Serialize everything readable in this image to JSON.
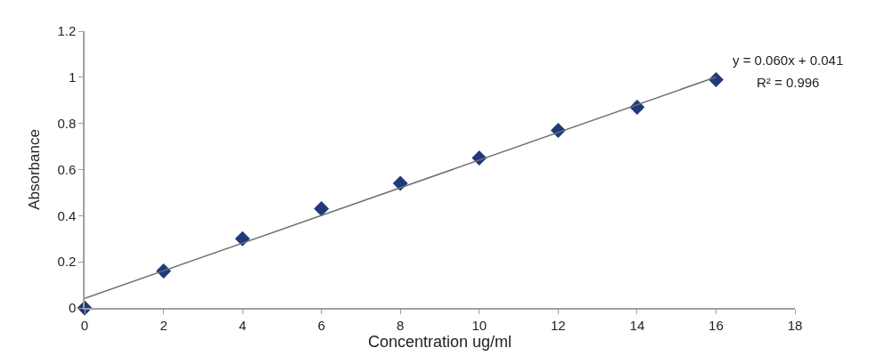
{
  "chart_data": {
    "type": "scatter",
    "xlabel": "Concentration ug/ml",
    "ylabel": "Absorbance",
    "x": [
      0,
      2,
      4,
      6,
      8,
      10,
      12,
      14,
      16
    ],
    "series": [
      {
        "color": "#1f3a7a",
        "values": [
          0,
          0.16,
          0.3,
          0.43,
          0.54,
          0.65,
          0.77,
          0.87,
          0.99
        ],
        "marker": "diamond"
      },
      {
        "type": "line",
        "color": "#6e6e6e",
        "x": [
          0,
          16
        ],
        "values": [
          0.041,
          1.001
        ],
        "marker": "none",
        "line_style": "solid"
      }
    ],
    "annotations": [
      "y = 0.060x + 0.041",
      "R² = 0.996"
    ],
    "xlim": [
      0,
      18
    ],
    "xticks": [
      0,
      2,
      4,
      6,
      8,
      10,
      12,
      14,
      16,
      18
    ],
    "ylim": [
      0,
      1.2
    ],
    "yticks": [
      0,
      0.2,
      0.4,
      0.6,
      0.8,
      1,
      1.2
    ]
  }
}
